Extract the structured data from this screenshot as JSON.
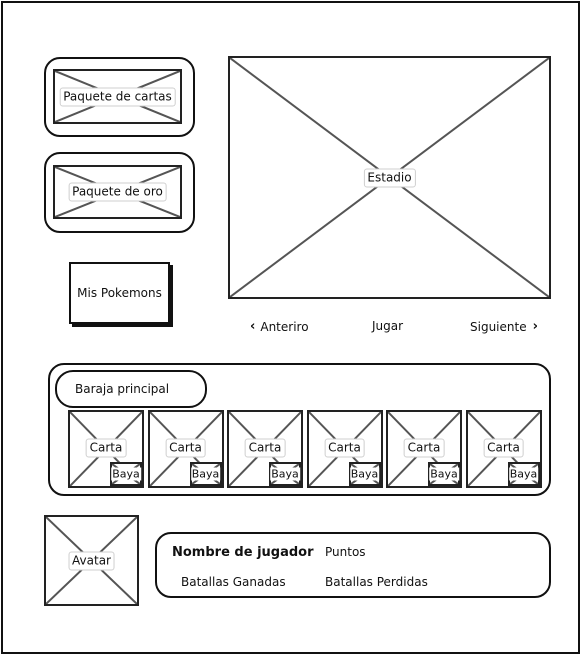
{
  "left_panel": {
    "card_pack": {
      "label": "Paquete de cartas"
    },
    "gold_pack": {
      "label": "Paquete de oro"
    },
    "my_pokemons_button": {
      "label": "Mis Pokemons"
    }
  },
  "stadium": {
    "label": "Estadio",
    "prev_label": "Anteriro",
    "play_label": "Jugar",
    "next_label": "Siguiente"
  },
  "deck": {
    "title": "Baraja principal",
    "cards": [
      {
        "label": "Carta",
        "berry": "Baya"
      },
      {
        "label": "Carta",
        "berry": "Baya"
      },
      {
        "label": "Carta",
        "berry": "Baya"
      },
      {
        "label": "Carta",
        "berry": "Baya"
      },
      {
        "label": "Carta",
        "berry": "Baya"
      },
      {
        "label": "Carta",
        "berry": "Baya"
      }
    ]
  },
  "player": {
    "avatar_label": "Avatar",
    "name_label": "Nombre de jugador",
    "points_label": "Puntos",
    "battles_won_label": "Batallas Ganadas",
    "battles_lost_label": "Batallas Perdidas"
  }
}
